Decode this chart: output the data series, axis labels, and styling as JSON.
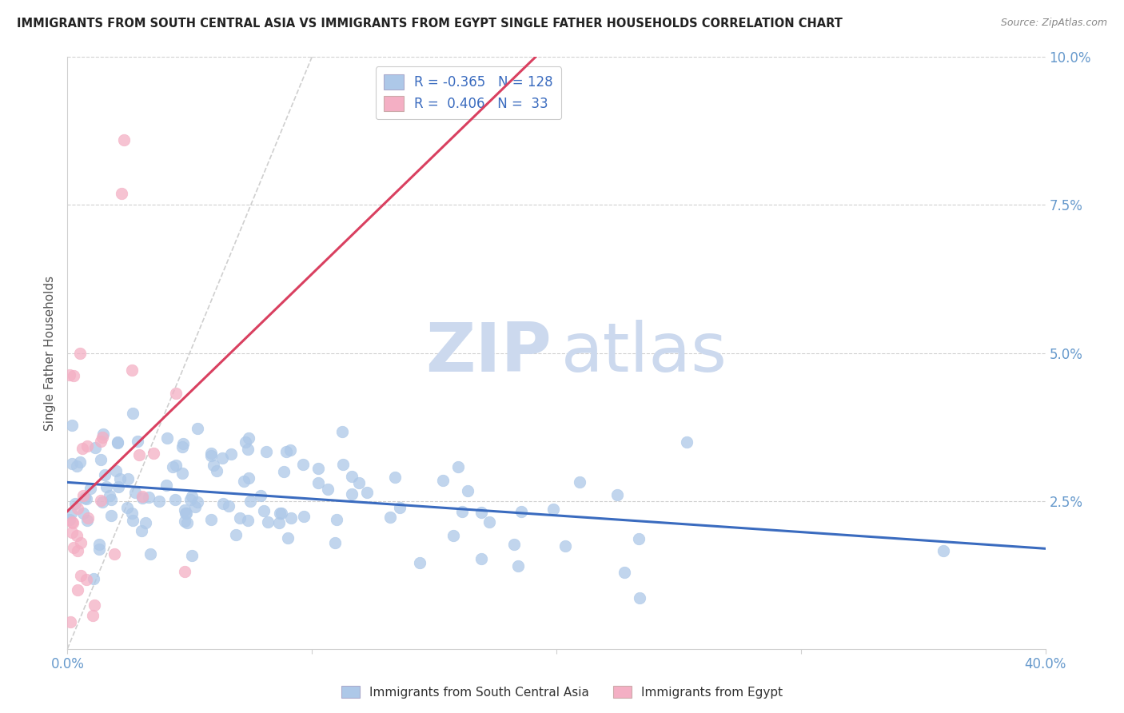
{
  "title": "IMMIGRANTS FROM SOUTH CENTRAL ASIA VS IMMIGRANTS FROM EGYPT SINGLE FATHER HOUSEHOLDS CORRELATION CHART",
  "source": "Source: ZipAtlas.com",
  "ylabel": "Single Father Households",
  "xlim": [
    0.0,
    0.4
  ],
  "ylim": [
    0.0,
    0.1
  ],
  "R_blue": -0.365,
  "N_blue": 128,
  "R_pink": 0.406,
  "N_pink": 33,
  "legend_label_blue": "Immigrants from South Central Asia",
  "legend_label_pink": "Immigrants from Egypt",
  "color_blue": "#adc8e8",
  "color_pink": "#f4afc4",
  "color_blue_dark": "#3a6bbf",
  "color_pink_dark": "#d94060",
  "diagonal_color": "#bbbbbb",
  "watermark_zip": "ZIP",
  "watermark_atlas": "atlas",
  "watermark_color": "#ccd9ee",
  "grid_color": "#d0d0d0",
  "axis_label_color": "#6699cc",
  "title_color": "#222222",
  "source_color": "#888888"
}
